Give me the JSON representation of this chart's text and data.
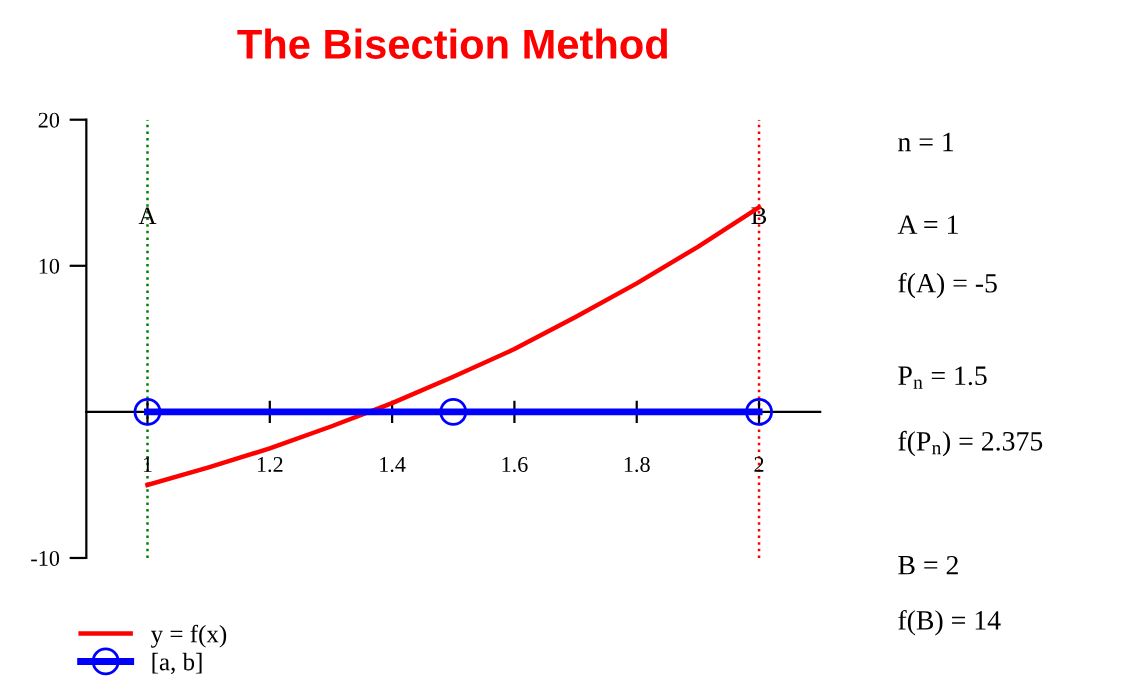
{
  "chart_data": {
    "type": "line",
    "title": "The Bisection Method",
    "xlim": [
      0.9,
      2.1
    ],
    "xticks": [
      1,
      1.2,
      1.4,
      1.6,
      1.8,
      2
    ],
    "ylim": [
      -10,
      20
    ],
    "yticks": [
      -10,
      10,
      20
    ],
    "series": [
      {
        "name": "y = f(x)",
        "color": "#ff0000",
        "marker": "none",
        "x": [
          1,
          1.1,
          1.2,
          1.3,
          1.4,
          1.5,
          1.6,
          1.7,
          1.8,
          1.9,
          2
        ],
        "values": [
          -5,
          -3.8,
          -2.5,
          -1.0,
          0.6,
          2.4,
          4.3,
          6.5,
          8.8,
          11.3,
          14
        ]
      },
      {
        "name": "[a, b]",
        "color": "#0000ff",
        "marker": "circle",
        "x": [
          1,
          1.5,
          2
        ],
        "values": [
          0,
          0,
          0
        ]
      }
    ],
    "ref_lines": [
      {
        "axis": "x",
        "value": 1,
        "label": "A",
        "color": "#008000",
        "line_style": "dotted"
      },
      {
        "axis": "x",
        "value": 2,
        "label": "B",
        "color": "#ff0000",
        "line_style": "dotted"
      }
    ],
    "annotations": [
      "n = 1",
      "A = 1",
      "f(A) = -5",
      "P$_{n}$ = 1.5",
      "f(P$_{n}$) = 2.375",
      "B = 2",
      "f(B) = 14"
    ],
    "grid": false,
    "legend": "bottom left"
  }
}
